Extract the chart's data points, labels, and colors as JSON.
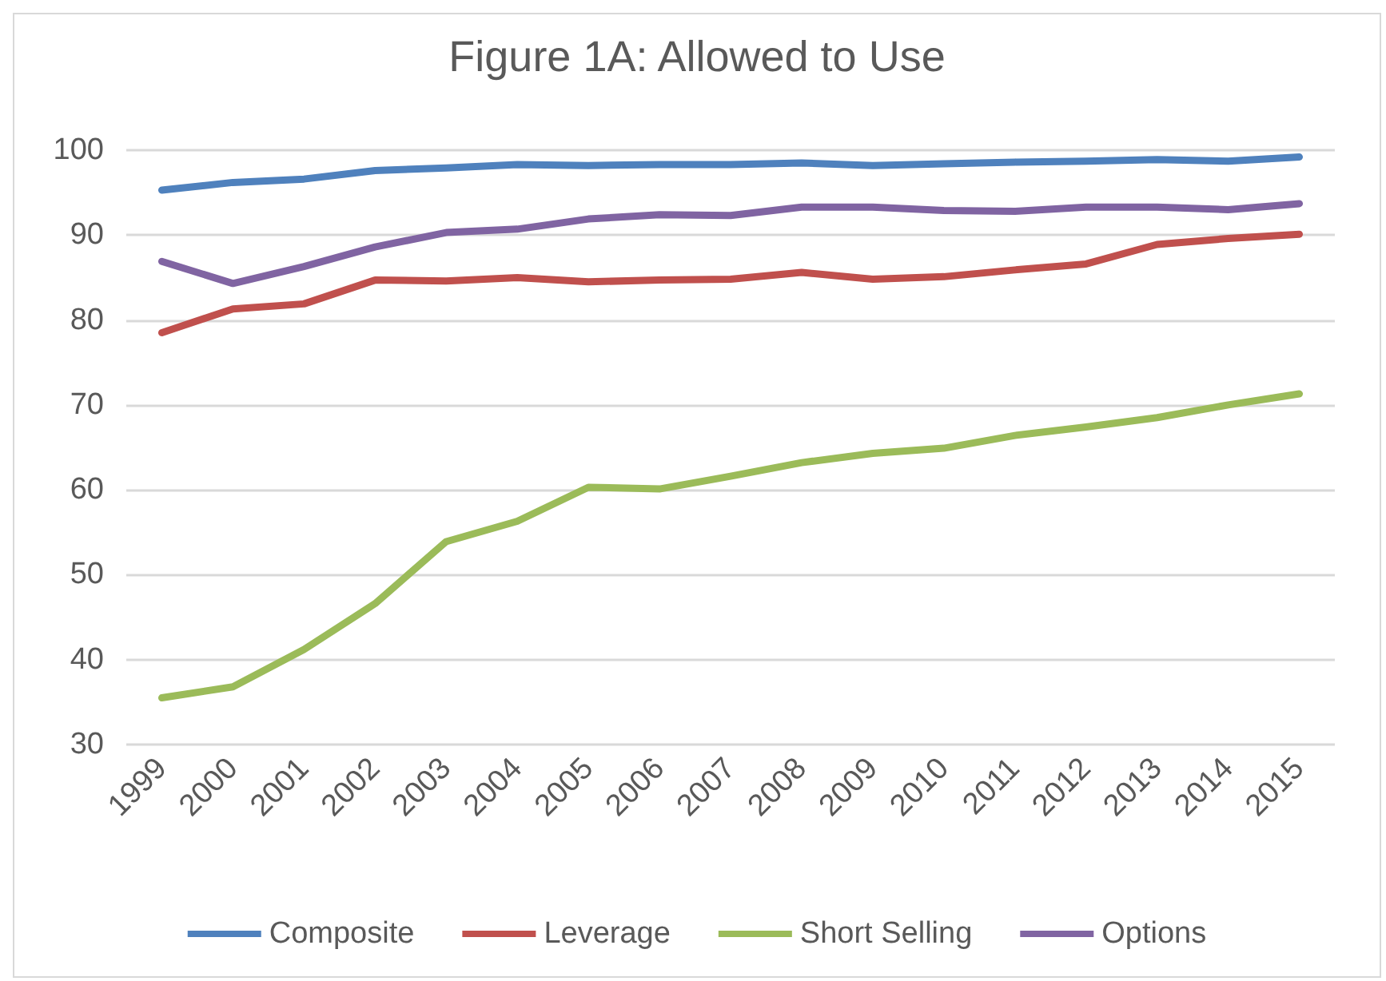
{
  "chart_data": {
    "type": "line",
    "title": "Figure 1A: Allowed to Use",
    "categories": [
      "1999",
      "2000",
      "2001",
      "2002",
      "2003",
      "2004",
      "2005",
      "2006",
      "2007",
      "2008",
      "2009",
      "2010",
      "2011",
      "2012",
      "2013",
      "2014",
      "2015"
    ],
    "series": [
      {
        "name": "Composite",
        "color": "#4f81bd",
        "values": [
          95.3,
          96.2,
          96.6,
          97.6,
          97.9,
          98.3,
          98.2,
          98.3,
          98.3,
          98.5,
          98.2,
          98.4,
          98.6,
          98.7,
          98.9,
          98.7,
          99.2
        ]
      },
      {
        "name": "Leverage",
        "color": "#c0504d",
        "values": [
          78.5,
          81.3,
          81.9,
          84.7,
          84.6,
          85.0,
          84.5,
          84.7,
          84.8,
          85.6,
          84.8,
          85.1,
          85.9,
          86.6,
          88.9,
          89.6,
          90.1
        ]
      },
      {
        "name": "Short Selling",
        "color": "#9bbb59",
        "values": [
          35.5,
          36.8,
          41.2,
          46.6,
          53.9,
          56.3,
          60.3,
          60.1,
          61.6,
          63.2,
          64.3,
          64.9,
          66.4,
          67.4,
          68.5,
          70.0,
          71.3
        ]
      },
      {
        "name": "Options",
        "color": "#8064a2",
        "values": [
          86.9,
          84.3,
          86.3,
          88.6,
          90.3,
          90.7,
          91.9,
          92.4,
          92.3,
          93.3,
          93.3,
          92.9,
          92.8,
          93.3,
          93.3,
          93.0,
          93.7
        ]
      }
    ],
    "ylim": [
      30,
      100
    ],
    "yticks": [
      30,
      40,
      50,
      60,
      70,
      80,
      90,
      100
    ],
    "grid": "y",
    "legend": "bottom",
    "marker": "none",
    "line_style": "solid"
  }
}
